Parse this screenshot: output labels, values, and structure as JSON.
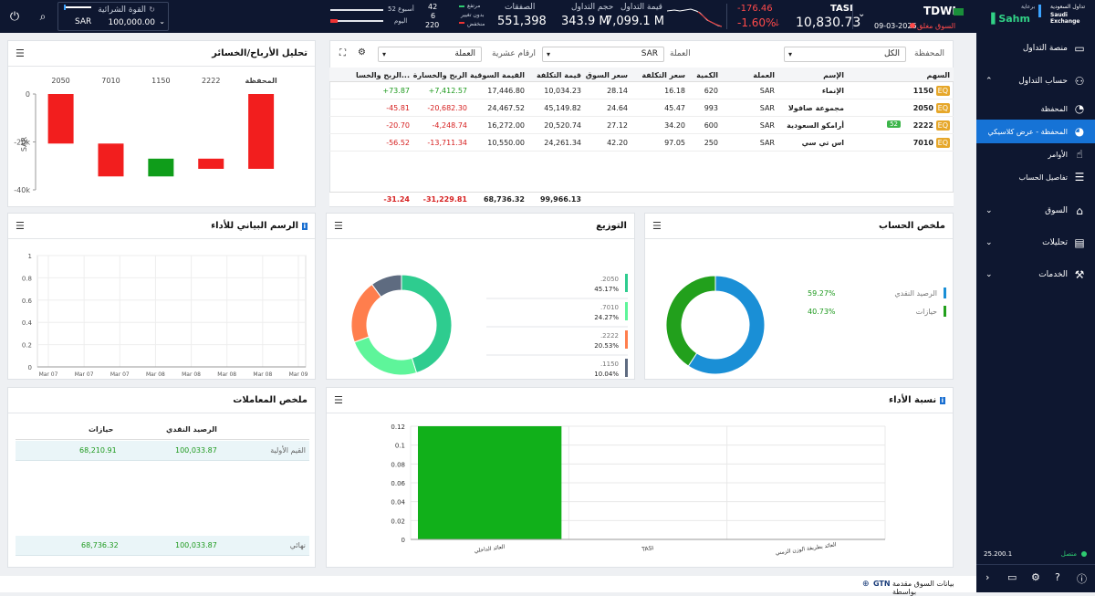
{
  "topbar": {
    "brand_powered": "برعاية",
    "brand_name": "Sahm",
    "exchange_ar": "تداول السعودية",
    "exchange_en": "Saudi Exchange",
    "symbol": "TDWL",
    "market_status": "السوق مغلق",
    "date": "09-03-2026",
    "index_name": "TASI",
    "index_value": "10,830.73",
    "index_change": "-176.46",
    "index_change_pct": "-1.60%",
    "trade_value_label": "قيمة التداول",
    "trade_value": "7,099.1 M",
    "trade_volume_label": "حجم التداول",
    "trade_volume": "343.9 M",
    "deals_label": "الصفقات",
    "deals": "551,398",
    "up_label": "مرتفع",
    "up_val": "42",
    "nochange_label": "بدون تغيير",
    "nochange_val": "6",
    "down_label": "منخفض",
    "down_val": "220",
    "week52_label": "52 أسبوع",
    "today_label": "اليوم",
    "buying_power_label": "القوة الشرائية",
    "buying_power_currency": "SAR",
    "buying_power_value": "100,000.00"
  },
  "sidebar": {
    "items": [
      {
        "label": "منصة التداول",
        "icon": "monitor-icon"
      },
      {
        "label": "حساب التداول",
        "icon": "user-icon"
      },
      {
        "label": "المحفظة",
        "icon": "portfolio-icon"
      },
      {
        "label": "المحفظة - عرض كلاسيكي",
        "icon": "portfolio-classic-icon"
      },
      {
        "label": "الأوامر",
        "icon": "orders-icon"
      },
      {
        "label": "تفاصيل الحساب",
        "icon": "account-details-icon"
      },
      {
        "label": "السوق",
        "icon": "bank-icon"
      },
      {
        "label": "تحليلات",
        "icon": "analytics-icon"
      },
      {
        "label": "الخدمات",
        "icon": "services-icon"
      }
    ],
    "version": "25.200.1",
    "connection": "متصل"
  },
  "portfolio": {
    "portfolio_label": "المحفظة",
    "portfolio_value": "الكل",
    "currency_label": "العملة",
    "currency_value": "SAR",
    "decimals_label": "ارقام عشرية",
    "currency_dd": "العملة",
    "columns": [
      "السهم",
      "الإسم",
      "العملة",
      "الكمية",
      "سعر التكلفة",
      "سعر السوق",
      "قيمة التكلفة",
      "القيمة السوقية",
      "الربح والخسارة",
      "الربح والخسا..."
    ],
    "rows": [
      {
        "code": "1150",
        "tag": "EQ",
        "badge": "",
        "name": "الإنماء",
        "cur": "SAR",
        "qty": "620",
        "cost_price": "16.18",
        "mkt_price": "28.14",
        "cost_val": "10,034.23",
        "mkt_val": "17,446.80",
        "pl": "+7,412.57",
        "plpct": "+73.87",
        "sign": "pos"
      },
      {
        "code": "2050",
        "tag": "EQ",
        "badge": "",
        "name": "مجموعة صافولا",
        "cur": "SAR",
        "qty": "993",
        "cost_price": "45.47",
        "mkt_price": "24.64",
        "cost_val": "45,149.82",
        "mkt_val": "24,467.52",
        "pl": "-20,682.30",
        "plpct": "-45.81",
        "sign": "neg"
      },
      {
        "code": "2222",
        "tag": "EQ",
        "badge": "52",
        "name": "أرامكو السعودية",
        "cur": "SAR",
        "qty": "600",
        "cost_price": "34.20",
        "mkt_price": "27.12",
        "cost_val": "20,520.74",
        "mkt_val": "16,272.00",
        "pl": "-4,248.74",
        "plpct": "-20.70",
        "sign": "neg"
      },
      {
        "code": "7010",
        "tag": "EQ",
        "badge": "",
        "name": "اس تي سي",
        "cur": "SAR",
        "qty": "250",
        "cost_price": "97.05",
        "mkt_price": "42.20",
        "cost_val": "24,261.34",
        "mkt_val": "10,550.00",
        "pl": "-13,711.34",
        "plpct": "-56.52",
        "sign": "neg"
      }
    ],
    "totals": {
      "cost_val": "99,966.13",
      "mkt_val": "68,736.32",
      "pl": "-31,229.81",
      "plpct": "-31.24"
    }
  },
  "pl_analysis": {
    "title": "تحليل الأرباح/الخسائر",
    "chart_data": {
      "type": "bar",
      "categories": [
        "المحفظة",
        "2222",
        "1150",
        "7010",
        "2050"
      ],
      "values": [
        -31229.81,
        -4248.74,
        7412.57,
        -13711.34,
        -20682.3
      ],
      "ylabel": "SAR",
      "yticks": [
        "0",
        "-20k",
        "-40k"
      ],
      "ylim": [
        -40000,
        0
      ]
    }
  },
  "performance_chart": {
    "title": "الرسم البياني للأداء",
    "yticks": [
      "1",
      "0.8",
      "0.6",
      "0.4",
      "0.2",
      "0"
    ],
    "xticks": [
      "Mar 07",
      "Mar 07",
      "Mar 07",
      "Mar 08",
      "Mar 08",
      "Mar 08",
      "Mar 08",
      "Mar 09"
    ]
  },
  "distribution": {
    "title": "التوزيع",
    "chart_data": {
      "type": "pie",
      "categories": [
        "2050",
        "7010",
        "2222",
        "1150"
      ],
      "values": [
        45.17,
        24.27,
        20.53,
        10.04
      ],
      "labels": [
        ".2050",
        ".7010",
        ".2222",
        ".1150"
      ],
      "pct_labels": [
        "45.17%",
        "24.27%",
        "20.53%",
        "10.04%"
      ],
      "colors": [
        "#2ecc8f",
        "#5ef59a",
        "#ff7e4d",
        "#5e6b80"
      ]
    }
  },
  "account_summary": {
    "title": "ملخص الحساب",
    "chart_data": {
      "type": "pie",
      "categories": [
        "الرصيد النقدي",
        "حيازات"
      ],
      "values": [
        59.27,
        40.73
      ],
      "pct_labels": [
        "59.27%",
        "40.73%"
      ],
      "colors": [
        "#1a8fd6",
        "#22a01c"
      ]
    }
  },
  "transactions": {
    "title": "ملخص المعاملات",
    "col_cash": "الرصيد النقدي",
    "col_holdings": "حيازات",
    "row1_label": "القيم الأولية",
    "row1_cash": "100,033.87",
    "row1_hold": "68,210.91",
    "row2_label": "نهائي",
    "row2_cash": "100,033.87",
    "row2_hold": "68,736.32"
  },
  "performance_ratio": {
    "title": "نسبة الأداء",
    "chart_data": {
      "type": "bar",
      "categories": [
        "العائد الداخلي",
        "TASI",
        "العائد بطريقة الوزن الزمني"
      ],
      "values": [
        0.12,
        0,
        0
      ],
      "yticks": [
        "0.12",
        "0.1",
        "0.08",
        "0.06",
        "0.04",
        "0.02",
        "0"
      ],
      "ylim": [
        0,
        0.12
      ]
    }
  },
  "footer": {
    "provider_text": "بيانات السوق مقدمة بواسطة",
    "provider_name": "GTN"
  }
}
